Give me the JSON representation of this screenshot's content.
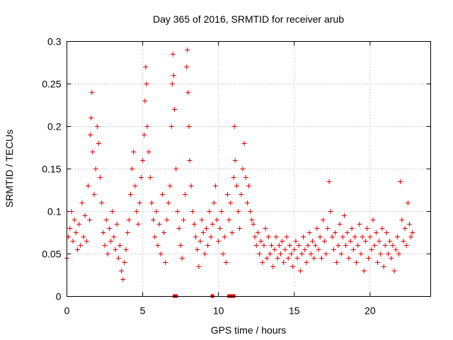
{
  "chart_data": {
    "type": "scatter",
    "title": "Day 365 of 2016, SRMTID for receiver arub",
    "xlabel": "GPS time / hours",
    "ylabel": "SRMTID / TECUs",
    "xlim": [
      0,
      24
    ],
    "ylim": [
      0,
      0.3
    ],
    "xticks": [
      0,
      5,
      10,
      15,
      20
    ],
    "xtick_labels": [
      "0",
      "5",
      "10",
      "15",
      "20"
    ],
    "yticks": [
      0,
      0.05,
      0.1,
      0.15,
      0.2,
      0.25,
      0.3
    ],
    "ytick_labels": [
      "0",
      "0.05",
      "0.1",
      "0.15",
      "0.2",
      "0.25",
      "0.3"
    ],
    "grid": true,
    "marker": "plus",
    "color": "#e00000",
    "series": [
      {
        "name": "SRMTID",
        "points": [
          [
            0.0,
            0.045
          ],
          [
            0.1,
            0.07
          ],
          [
            0.2,
            0.08
          ],
          [
            0.3,
            0.1
          ],
          [
            0.4,
            0.065
          ],
          [
            0.5,
            0.09
          ],
          [
            0.6,
            0.075
          ],
          [
            0.7,
            0.055
          ],
          [
            0.8,
            0.085
          ],
          [
            0.9,
            0.06
          ],
          [
            1.0,
            0.11
          ],
          [
            1.1,
            0.07
          ],
          [
            1.2,
            0.095
          ],
          [
            1.3,
            0.065
          ],
          [
            1.4,
            0.13
          ],
          [
            1.5,
            0.09
          ],
          [
            1.55,
            0.19
          ],
          [
            1.6,
            0.21
          ],
          [
            1.65,
            0.24
          ],
          [
            1.7,
            0.17
          ],
          [
            1.8,
            0.12
          ],
          [
            1.9,
            0.15
          ],
          [
            2.0,
            0.2
          ],
          [
            2.1,
            0.18
          ],
          [
            2.2,
            0.14
          ],
          [
            2.3,
            0.11
          ],
          [
            2.4,
            0.075
          ],
          [
            2.5,
            0.06
          ],
          [
            2.6,
            0.09
          ],
          [
            2.7,
            0.05
          ],
          [
            2.8,
            0.08
          ],
          [
            2.9,
            0.065
          ],
          [
            3.0,
            0.1
          ],
          [
            3.1,
            0.07
          ],
          [
            3.2,
            0.055
          ],
          [
            3.3,
            0.085
          ],
          [
            3.4,
            0.045
          ],
          [
            3.5,
            0.06
          ],
          [
            3.6,
            0.03
          ],
          [
            3.7,
            0.02
          ],
          [
            3.8,
            0.04
          ],
          [
            3.9,
            0.055
          ],
          [
            4.0,
            0.075
          ],
          [
            4.1,
            0.09
          ],
          [
            4.2,
            0.12
          ],
          [
            4.3,
            0.15
          ],
          [
            4.4,
            0.17
          ],
          [
            4.5,
            0.13
          ],
          [
            4.6,
            0.1
          ],
          [
            4.7,
            0.085
          ],
          [
            4.8,
            0.11
          ],
          [
            4.9,
            0.14
          ],
          [
            5.0,
            0.16
          ],
          [
            5.1,
            0.19
          ],
          [
            5.15,
            0.23
          ],
          [
            5.2,
            0.27
          ],
          [
            5.25,
            0.25
          ],
          [
            5.3,
            0.2
          ],
          [
            5.4,
            0.17
          ],
          [
            5.5,
            0.14
          ],
          [
            5.6,
            0.11
          ],
          [
            5.7,
            0.09
          ],
          [
            5.8,
            0.07
          ],
          [
            5.9,
            0.1
          ],
          [
            6.0,
            0.06
          ],
          [
            6.1,
            0.085
          ],
          [
            6.2,
            0.05
          ],
          [
            6.3,
            0.12
          ],
          [
            6.4,
            0.075
          ],
          [
            6.5,
            0.04
          ],
          [
            6.6,
            0.09
          ],
          [
            6.7,
            0.11
          ],
          [
            6.8,
            0.13
          ],
          [
            6.9,
            0.2
          ],
          [
            6.95,
            0.25
          ],
          [
            7.0,
            0.285
          ],
          [
            7.05,
            0.26
          ],
          [
            7.1,
            0.22
          ],
          [
            7.2,
            0.15
          ],
          [
            7.3,
            0.1
          ],
          [
            7.4,
            0.08
          ],
          [
            7.5,
            0.06
          ],
          [
            7.6,
            0.045
          ],
          [
            7.7,
            0.09
          ],
          [
            7.8,
            0.12
          ],
          [
            7.9,
            0.27
          ],
          [
            7.95,
            0.29
          ],
          [
            8.0,
            0.24
          ],
          [
            8.05,
            0.2
          ],
          [
            8.1,
            0.16
          ],
          [
            8.2,
            0.13
          ],
          [
            8.3,
            0.1
          ],
          [
            8.4,
            0.085
          ],
          [
            8.5,
            0.07
          ],
          [
            8.6,
            0.055
          ],
          [
            8.7,
            0.035
          ],
          [
            8.8,
            0.065
          ],
          [
            8.9,
            0.09
          ],
          [
            9.0,
            0.075
          ],
          [
            9.1,
            0.05
          ],
          [
            9.2,
            0.08
          ],
          [
            9.3,
            0.06
          ],
          [
            9.4,
            0.1
          ],
          [
            9.5,
            0.07
          ],
          [
            9.6,
            0.085
          ],
          [
            9.7,
            0.11
          ],
          [
            9.8,
            0.13
          ],
          [
            9.9,
            0.09
          ],
          [
            10.0,
            0.065
          ],
          [
            10.1,
            0.08
          ],
          [
            10.2,
            0.1
          ],
          [
            10.3,
            0.05
          ],
          [
            10.4,
            0.07
          ],
          [
            10.5,
            0.04
          ],
          [
            10.6,
            0.12
          ],
          [
            10.7,
            0.09
          ],
          [
            10.8,
            0.11
          ],
          [
            10.9,
            0.075
          ],
          [
            11.0,
            0.14
          ],
          [
            11.05,
            0.2
          ],
          [
            11.1,
            0.16
          ],
          [
            11.2,
            0.13
          ],
          [
            11.3,
            0.1
          ],
          [
            11.4,
            0.08
          ],
          [
            11.5,
            0.12
          ],
          [
            11.6,
            0.15
          ],
          [
            11.7,
            0.18
          ],
          [
            11.8,
            0.14
          ],
          [
            11.9,
            0.11
          ],
          [
            12.0,
            0.13
          ],
          [
            12.1,
            0.1
          ],
          [
            12.2,
            0.09
          ],
          [
            12.3,
            0.085
          ],
          [
            12.4,
            0.07
          ],
          [
            12.5,
            0.06
          ],
          [
            12.6,
            0.075
          ],
          [
            12.7,
            0.05
          ],
          [
            12.8,
            0.065
          ],
          [
            12.9,
            0.04
          ],
          [
            13.0,
            0.06
          ],
          [
            13.1,
            0.08
          ],
          [
            13.2,
            0.045
          ],
          [
            13.3,
            0.07
          ],
          [
            13.4,
            0.05
          ],
          [
            13.5,
            0.06
          ],
          [
            13.6,
            0.035
          ],
          [
            13.7,
            0.055
          ],
          [
            13.8,
            0.07
          ],
          [
            13.9,
            0.045
          ],
          [
            14.0,
            0.06
          ],
          [
            14.1,
            0.05
          ],
          [
            14.2,
            0.065
          ],
          [
            14.3,
            0.04
          ],
          [
            14.4,
            0.055
          ],
          [
            14.5,
            0.07
          ],
          [
            14.6,
            0.045
          ],
          [
            14.7,
            0.06
          ],
          [
            14.8,
            0.05
          ],
          [
            14.9,
            0.035
          ],
          [
            15.0,
            0.055
          ],
          [
            15.1,
            0.065
          ],
          [
            15.2,
            0.045
          ],
          [
            15.3,
            0.06
          ],
          [
            15.4,
            0.03
          ],
          [
            15.5,
            0.05
          ],
          [
            15.6,
            0.07
          ],
          [
            15.7,
            0.055
          ],
          [
            15.8,
            0.04
          ],
          [
            15.9,
            0.06
          ],
          [
            16.0,
            0.075
          ],
          [
            16.1,
            0.05
          ],
          [
            16.2,
            0.065
          ],
          [
            16.3,
            0.045
          ],
          [
            16.4,
            0.06
          ],
          [
            16.5,
            0.08
          ],
          [
            16.6,
            0.055
          ],
          [
            16.7,
            0.07
          ],
          [
            16.8,
            0.045
          ],
          [
            16.9,
            0.09
          ],
          [
            17.0,
            0.065
          ],
          [
            17.1,
            0.05
          ],
          [
            17.2,
            0.08
          ],
          [
            17.3,
            0.135
          ],
          [
            17.4,
            0.1
          ],
          [
            17.5,
            0.07
          ],
          [
            17.6,
            0.055
          ],
          [
            17.7,
            0.075
          ],
          [
            17.8,
            0.04
          ],
          [
            17.9,
            0.06
          ],
          [
            18.0,
            0.085
          ],
          [
            18.1,
            0.05
          ],
          [
            18.2,
            0.07
          ],
          [
            18.3,
            0.095
          ],
          [
            18.4,
            0.06
          ],
          [
            18.5,
            0.075
          ],
          [
            18.6,
            0.045
          ],
          [
            18.7,
            0.065
          ],
          [
            18.8,
            0.08
          ],
          [
            18.9,
            0.055
          ],
          [
            19.0,
            0.07
          ],
          [
            19.1,
            0.04
          ],
          [
            19.2,
            0.06
          ],
          [
            19.3,
            0.085
          ],
          [
            19.4,
            0.05
          ],
          [
            19.5,
            0.07
          ],
          [
            19.6,
            0.03
          ],
          [
            19.7,
            0.065
          ],
          [
            19.8,
            0.08
          ],
          [
            19.9,
            0.045
          ],
          [
            20.0,
            0.07
          ],
          [
            20.1,
            0.055
          ],
          [
            20.2,
            0.09
          ],
          [
            20.3,
            0.06
          ],
          [
            20.4,
            0.075
          ],
          [
            20.5,
            0.04
          ],
          [
            20.6,
            0.065
          ],
          [
            20.7,
            0.05
          ],
          [
            20.8,
            0.08
          ],
          [
            20.9,
            0.035
          ],
          [
            21.0,
            0.06
          ],
          [
            21.1,
            0.075
          ],
          [
            21.2,
            0.05
          ],
          [
            21.3,
            0.065
          ],
          [
            21.4,
            0.045
          ],
          [
            21.5,
            0.06
          ],
          [
            21.6,
            0.03
          ],
          [
            21.7,
            0.055
          ],
          [
            21.8,
            0.07
          ],
          [
            21.9,
            0.05
          ],
          [
            22.0,
            0.135
          ],
          [
            22.1,
            0.09
          ],
          [
            22.2,
            0.065
          ],
          [
            22.3,
            0.08
          ],
          [
            22.4,
            0.06
          ],
          [
            22.5,
            0.11
          ],
          [
            22.6,
            0.085
          ],
          [
            22.7,
            0.07
          ],
          [
            22.8,
            0.075
          ]
        ]
      }
    ],
    "flag_markers_x": [
      7.1,
      7.2,
      9.6,
      10.7,
      10.8,
      11.0
    ],
    "flag_markers_y": 0
  }
}
